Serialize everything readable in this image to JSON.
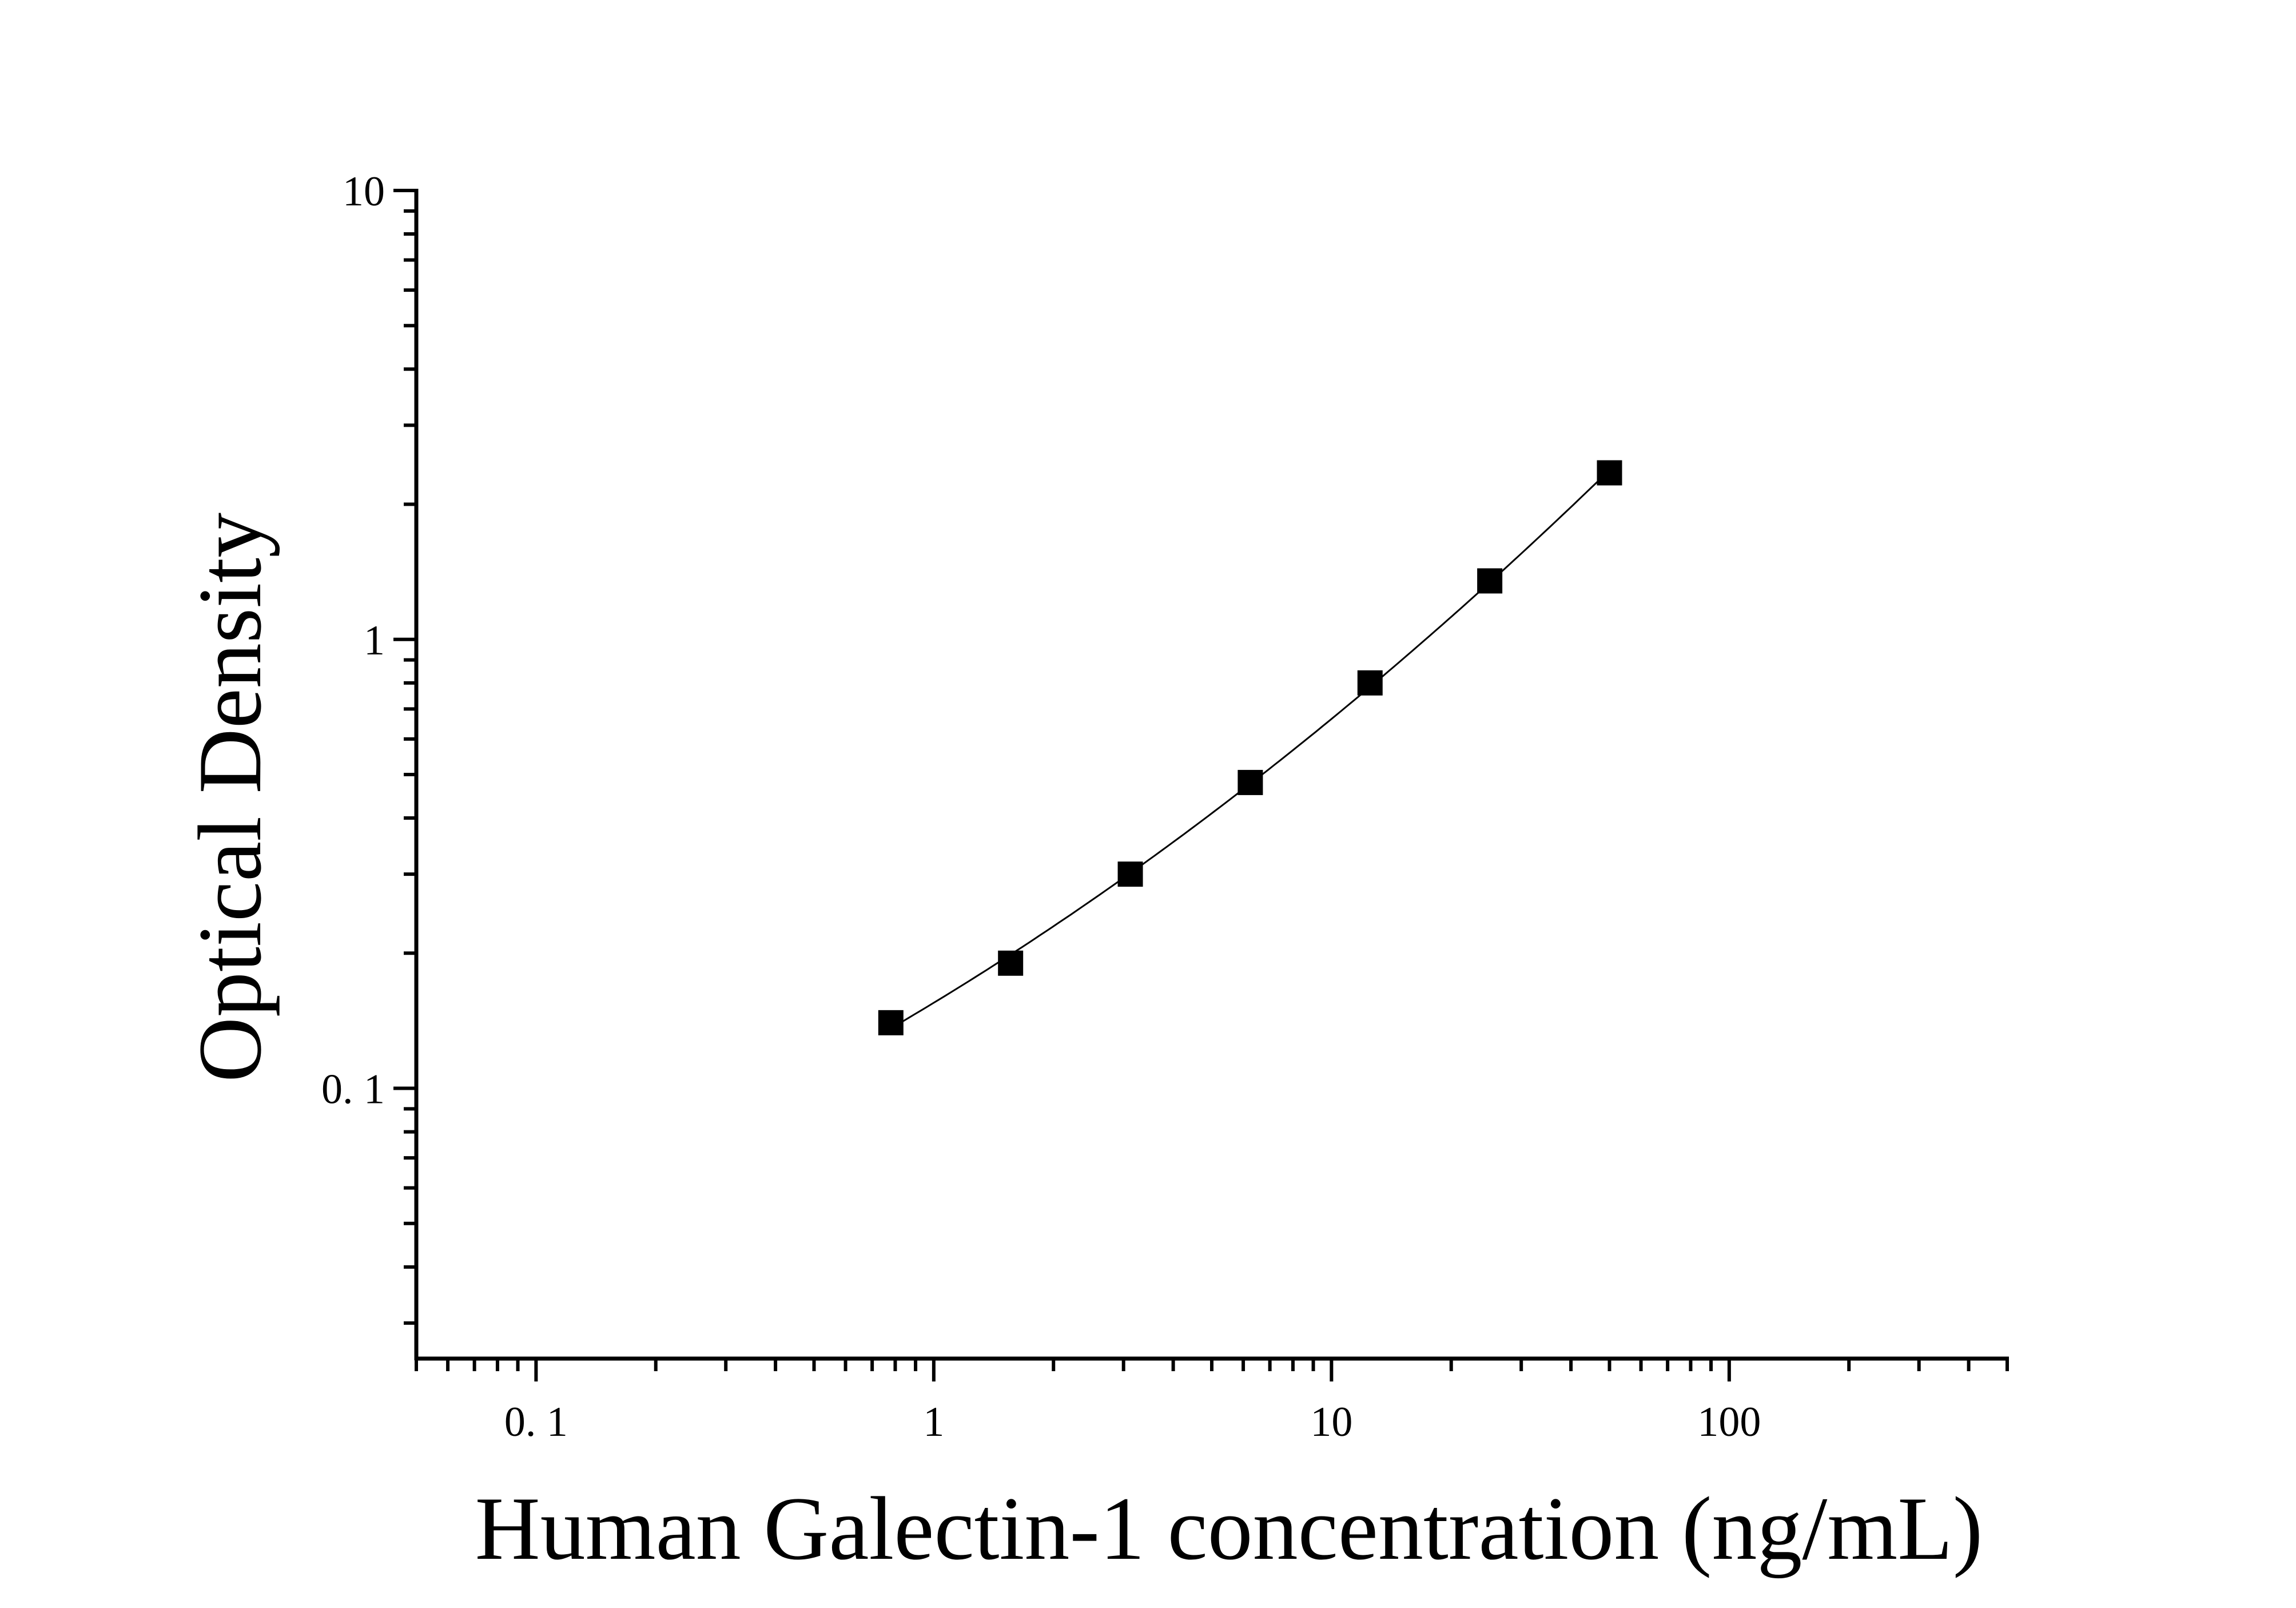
{
  "chart_data": {
    "type": "scatter",
    "xlabel": "Human Galectin-1 concentration (ng/mL)",
    "ylabel": "Optical Density",
    "xscale": "log",
    "yscale": "log",
    "xlim": [
      0.05,
      500
    ],
    "ylim": [
      0.025,
      10
    ],
    "x_ticks": [
      {
        "value": 0.1,
        "label": "0. 1"
      },
      {
        "value": 1,
        "label": "1"
      },
      {
        "value": 10,
        "label": "10"
      },
      {
        "value": 100,
        "label": "100"
      }
    ],
    "y_ticks": [
      {
        "value": 0.1,
        "label": "0. 1"
      },
      {
        "value": 1,
        "label": "1"
      },
      {
        "value": 10,
        "label": "10"
      }
    ],
    "grid": false,
    "legend": "none",
    "series": [
      {
        "marker": "square",
        "color": "#000000",
        "fit_line": true,
        "points": [
          {
            "x": 0.78,
            "y": 0.14
          },
          {
            "x": 1.56,
            "y": 0.19
          },
          {
            "x": 3.12,
            "y": 0.3
          },
          {
            "x": 6.25,
            "y": 0.48
          },
          {
            "x": 12.5,
            "y": 0.8
          },
          {
            "x": 25,
            "y": 1.35
          },
          {
            "x": 50,
            "y": 2.35
          }
        ]
      }
    ]
  }
}
